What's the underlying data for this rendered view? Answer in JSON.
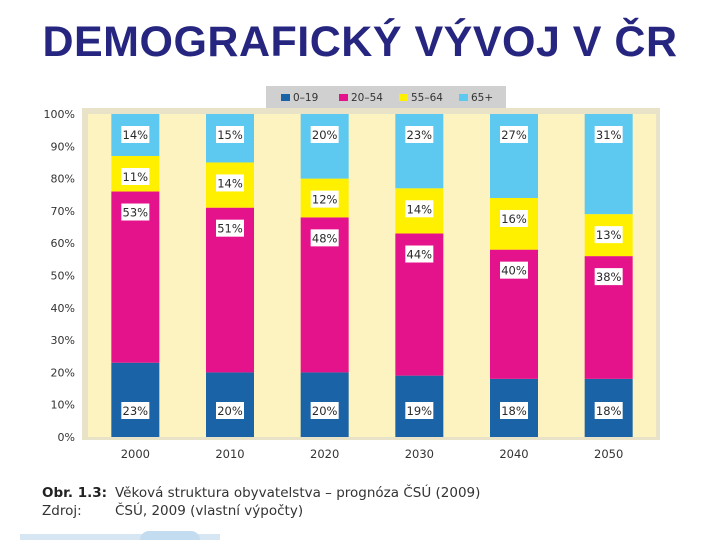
{
  "page": {
    "title": "DEMOGRAFICKÝ VÝVOJ V ČR"
  },
  "caption": {
    "fig_label": "Obr. 1.3:",
    "fig_text": "Věková struktura obyvatelstva – prognóza ČSÚ (2009)",
    "source_label": "Zdroj:",
    "source_text": "ČSÚ, 2009 (vlastní výpočty)"
  },
  "chart_data": {
    "type": "bar",
    "stacked": true,
    "categories": [
      "2000",
      "2010",
      "2020",
      "2030",
      "2040",
      "2050"
    ],
    "series": [
      {
        "name": "0–19",
        "color": "#1a63a6",
        "values": [
          23,
          20,
          20,
          19,
          18,
          18
        ],
        "labels": [
          "23%",
          "20%",
          "20%",
          "19%",
          "18%",
          "18%"
        ]
      },
      {
        "name": "20–54",
        "color": "#e5138b",
        "values": [
          53,
          51,
          48,
          44,
          40,
          38
        ],
        "labels": [
          "53%",
          "51%",
          "48%",
          "44%",
          "40%",
          "38%"
        ]
      },
      {
        "name": "55–64",
        "color": "#fff000",
        "values": [
          11,
          14,
          12,
          14,
          16,
          13
        ],
        "labels": [
          "11%",
          "14%",
          "12%",
          "14%",
          "16%",
          "13%"
        ]
      },
      {
        "name": "65+",
        "color": "#5dc8f0",
        "values": [
          14,
          15,
          20,
          23,
          27,
          31
        ],
        "labels": [
          "14%",
          "15%",
          "20%",
          "23%",
          "27%",
          "31%"
        ]
      }
    ],
    "ylim": [
      0,
      100
    ],
    "yticks": [
      "0%",
      "10%",
      "20%",
      "30%",
      "40%",
      "50%",
      "60%",
      "70%",
      "80%",
      "90%",
      "100%"
    ],
    "legend_position": "top",
    "grid": false,
    "colors": {
      "plot_background": "#fdf3c0",
      "frame": "#e8e2c8",
      "title": "#262680"
    }
  }
}
